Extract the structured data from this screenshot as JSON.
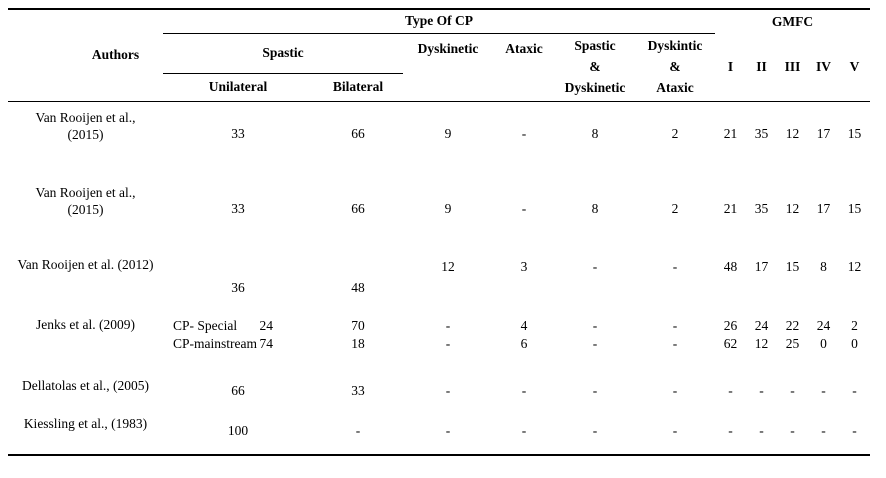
{
  "header": {
    "authors": "Authors",
    "type_of_cp": "Type Of CP",
    "gmfc": "GMFC",
    "spastic": "Spastic",
    "unilateral": "Unilateral",
    "bilateral": "Bilateral",
    "dyskinetic": "Dyskinetic",
    "ataxic": "Ataxic",
    "spastic_and_dyskinetic": [
      "Spastic",
      "&",
      "Dyskinetic"
    ],
    "dyskintic_and_ataxic": [
      "Dyskintic",
      "&",
      "Ataxic"
    ],
    "gmfc_levels": [
      "I",
      "II",
      "III",
      "IV",
      "V"
    ]
  },
  "rows": [
    {
      "author_line1": "Van Rooijen et al.,",
      "author_line2": "(2015)",
      "unilateral": "33",
      "bilateral": "66",
      "dyskinetic": "9",
      "ataxic": "-",
      "spastic_dyskinetic": "8",
      "dyskintic_ataxic": "2",
      "gmfc": [
        "21",
        "35",
        "12",
        "17",
        "15"
      ]
    },
    {
      "author_line1": "Van Rooijen et al.,",
      "author_line2": "(2015)",
      "unilateral": "33",
      "bilateral": "66",
      "dyskinetic": "9",
      "ataxic": "-",
      "spastic_dyskinetic": "8",
      "dyskintic_ataxic": "2",
      "gmfc": [
        "21",
        "35",
        "12",
        "17",
        "15"
      ]
    },
    {
      "author_line1": "Van Rooijen et al. (2012)",
      "unilateral": "36",
      "bilateral": "48",
      "dyskinetic": "12",
      "ataxic": "3",
      "spastic_dyskinetic": "-",
      "dyskintic_ataxic": "-",
      "gmfc": [
        "48",
        "17",
        "15",
        "8",
        "12"
      ]
    },
    {
      "author_line1": "Jenks et al. (2009)",
      "groups": [
        {
          "label": "CP- Special",
          "unilateral": "24",
          "bilateral": "70",
          "dyskinetic": "-",
          "ataxic": "4",
          "spastic_dyskinetic": "-",
          "dyskintic_ataxic": "-",
          "gmfc": [
            "26",
            "24",
            "22",
            "24",
            "2"
          ]
        },
        {
          "label": "CP-mainstream",
          "unilateral": "74",
          "bilateral": "18",
          "dyskinetic": "-",
          "ataxic": "6",
          "spastic_dyskinetic": "-",
          "dyskintic_ataxic": "-",
          "gmfc": [
            "62",
            "12",
            "25",
            "0",
            "0"
          ]
        }
      ]
    },
    {
      "author_line1": "Dellatolas et al., (2005)",
      "unilateral": "66",
      "bilateral": "33",
      "dyskinetic": "-",
      "ataxic": "-",
      "spastic_dyskinetic": "-",
      "dyskintic_ataxic": "-",
      "gmfc": [
        "-",
        "-",
        "-",
        "-",
        "-"
      ]
    },
    {
      "author_line1": "Kiessling et al., (1983)",
      "unilateral": "100",
      "bilateral": "-",
      "dyskinetic": "-",
      "ataxic": "-",
      "spastic_dyskinetic": "-",
      "dyskintic_ataxic": "-",
      "gmfc": [
        "-",
        "-",
        "-",
        "-",
        "-"
      ]
    }
  ]
}
